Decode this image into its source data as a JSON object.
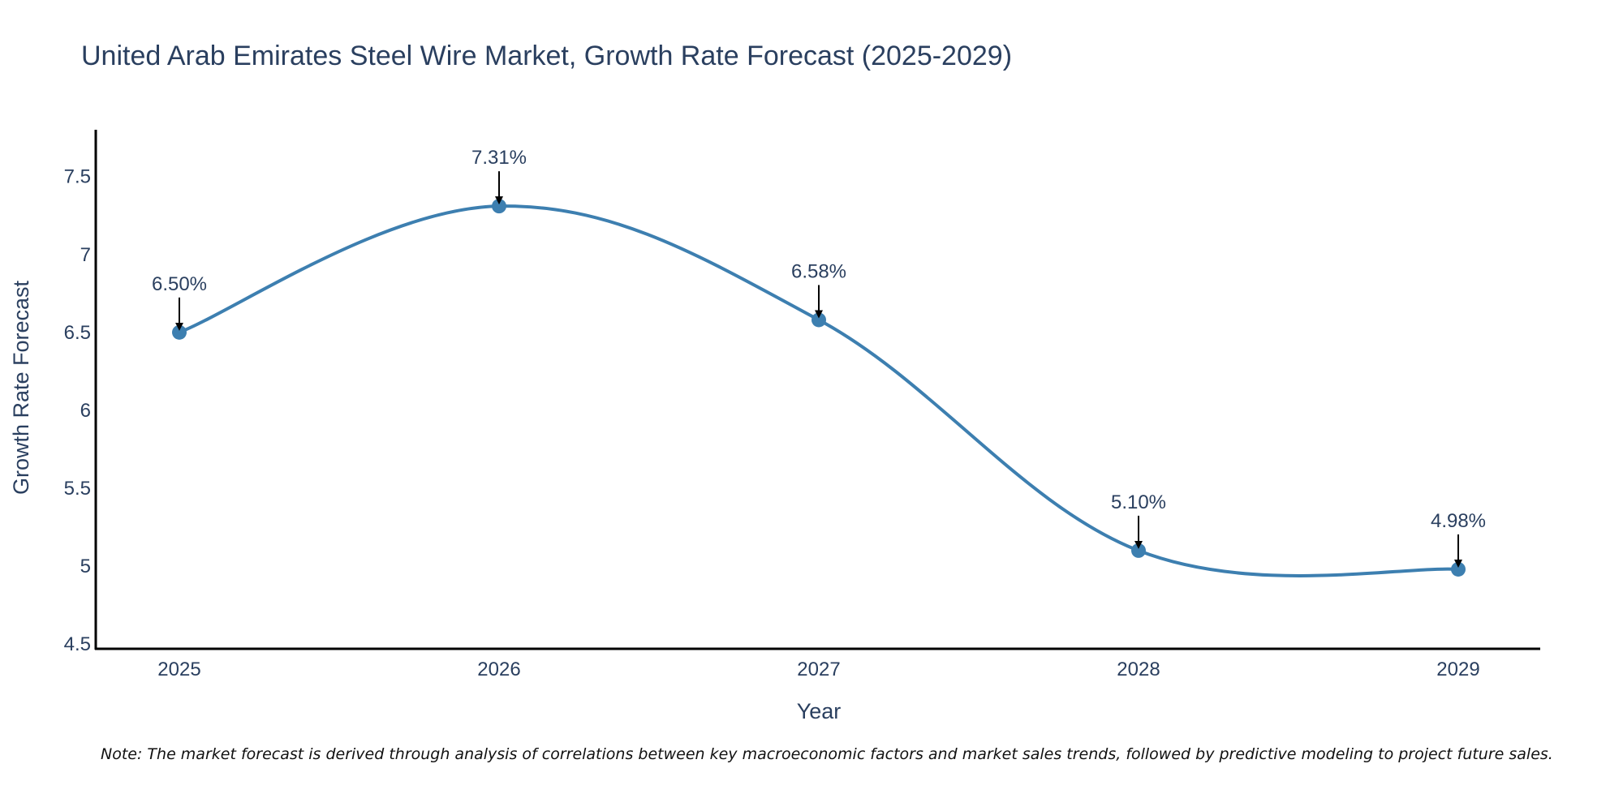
{
  "colors": {
    "line": "#3d7fb0",
    "marker": "#3d7fb0",
    "text": "#2a3f5f",
    "axis": "#000000",
    "arrow": "#000000"
  },
  "chart_data": {
    "type": "line",
    "title": "United Arab Emirates Steel Wire Market, Growth Rate Forecast (2025-2029)",
    "xlabel": "Year",
    "ylabel": "Growth Rate Forecast",
    "categories": [
      "2025",
      "2026",
      "2027",
      "2028",
      "2029"
    ],
    "values": [
      6.5,
      7.31,
      6.58,
      5.1,
      4.98
    ],
    "data_labels": [
      "6.50%",
      "7.31%",
      "6.58%",
      "5.10%",
      "4.98%"
    ],
    "ylim": [
      4.47,
      7.8
    ],
    "yticks": [
      4.5,
      5,
      5.5,
      6,
      6.5,
      7,
      7.5
    ],
    "ytick_labels": [
      "4.5",
      "5",
      "5.5",
      "6",
      "6.5",
      "7",
      "7.5"
    ],
    "grid": false,
    "smooth": true
  },
  "note": "Note: The market forecast is derived through analysis of correlations between key macroeconomic factors and market sales trends, followed by predictive modeling to project future sales."
}
